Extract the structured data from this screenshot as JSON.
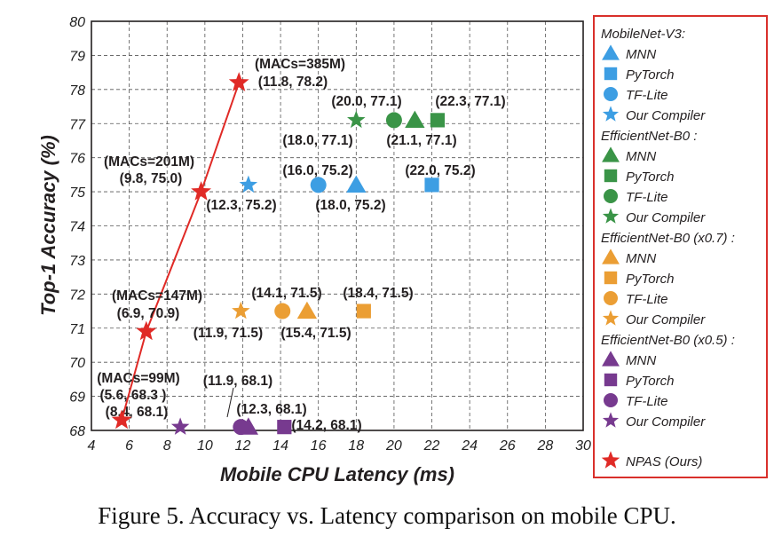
{
  "caption": "Figure 5. Accuracy vs. Latency comparison on mobile CPU.",
  "chart_data": {
    "type": "scatter",
    "title": "",
    "xlabel": "Mobile CPU Latency (ms)",
    "ylabel": "Top-1 Accuracy (%)",
    "xlim": [
      4,
      30
    ],
    "ylim": [
      68,
      80
    ],
    "xticks": [
      4,
      6,
      8,
      10,
      12,
      14,
      16,
      18,
      20,
      22,
      24,
      26,
      28,
      30
    ],
    "yticks": [
      68,
      69,
      70,
      71,
      72,
      73,
      74,
      75,
      76,
      77,
      78,
      79,
      80
    ],
    "grid": true,
    "legend_placement": "right-outside",
    "groups": [
      {
        "name": "MobileNet-V3:",
        "color": "#3d9ee3",
        "series": [
          {
            "name": "MNN",
            "shape": "triangle",
            "points": [
              {
                "x": 18.0,
                "y": 75.2,
                "label": "(18.0, 75.2)"
              }
            ]
          },
          {
            "name": "PyTorch",
            "shape": "square",
            "points": [
              {
                "x": 22.0,
                "y": 75.2,
                "label": "(22.0, 75.2)"
              }
            ]
          },
          {
            "name": "TF-Lite",
            "shape": "circle",
            "points": [
              {
                "x": 16.0,
                "y": 75.2,
                "label": "(16.0, 75.2)"
              }
            ]
          },
          {
            "name": "Our Compiler",
            "shape": "star",
            "points": [
              {
                "x": 12.3,
                "y": 75.2,
                "label": "(12.3, 75.2)"
              }
            ]
          }
        ]
      },
      {
        "name": "EfficientNet-B0 :",
        "color": "#3a9447",
        "series": [
          {
            "name": "MNN",
            "shape": "triangle",
            "points": [
              {
                "x": 21.1,
                "y": 77.1,
                "label": "(21.1, 77.1)"
              }
            ]
          },
          {
            "name": "PyTorch",
            "shape": "square",
            "points": [
              {
                "x": 22.3,
                "y": 77.1,
                "label": "(22.3, 77.1)"
              }
            ]
          },
          {
            "name": "TF-Lite",
            "shape": "circle",
            "points": [
              {
                "x": 20.0,
                "y": 77.1,
                "label": "(20.0, 77.1)"
              }
            ]
          },
          {
            "name": "Our Compiler",
            "shape": "star",
            "points": [
              {
                "x": 18.0,
                "y": 77.1,
                "label": "(18.0, 77.1)"
              }
            ]
          }
        ]
      },
      {
        "name": "EfficientNet-B0 (x0.7) :",
        "color": "#eb9e34",
        "series": [
          {
            "name": "MNN",
            "shape": "triangle",
            "points": [
              {
                "x": 15.4,
                "y": 71.5,
                "label": "(15.4, 71.5)"
              }
            ]
          },
          {
            "name": "PyTorch",
            "shape": "square",
            "points": [
              {
                "x": 18.4,
                "y": 71.5,
                "label": "(18.4, 71.5)"
              }
            ]
          },
          {
            "name": "TF-Lite",
            "shape": "circle",
            "points": [
              {
                "x": 14.1,
                "y": 71.5,
                "label": "(14.1, 71.5)"
              }
            ]
          },
          {
            "name": "Our Compiler",
            "shape": "star",
            "points": [
              {
                "x": 11.9,
                "y": 71.5,
                "label": "(11.9, 71.5)"
              }
            ]
          }
        ]
      },
      {
        "name": "EfficientNet-B0 (x0.5) :",
        "color": "#773a8f",
        "series": [
          {
            "name": "MNN",
            "shape": "triangle",
            "points": [
              {
                "x": 12.3,
                "y": 68.1,
                "label": "(12.3, 68.1)"
              }
            ]
          },
          {
            "name": "PyTorch",
            "shape": "square",
            "points": [
              {
                "x": 14.2,
                "y": 68.1,
                "label": "(14.2, 68.1)"
              }
            ]
          },
          {
            "name": "TF-Lite",
            "shape": "circle",
            "points": [
              {
                "x": 11.9,
                "y": 68.1,
                "label": "(11.9, 68.1)"
              }
            ]
          },
          {
            "name": "Our Compiler",
            "shape": "star",
            "points": [
              {
                "x": 8.4,
                "y": 68.1,
                "label": "(8.4, 68.1)"
              }
            ]
          }
        ]
      }
    ],
    "npas": {
      "name": "NPAS (Ours)",
      "shape": "star",
      "color": "#e02a26",
      "points": [
        {
          "x": 5.6,
          "y": 68.3,
          "label": "(5.6, 68.3 )",
          "macs": "(MACs=99M)"
        },
        {
          "x": 6.9,
          "y": 70.9,
          "label": "(6.9, 70.9)",
          "macs": "(MACs=147M)"
        },
        {
          "x": 9.8,
          "y": 75.0,
          "label": "(9.8, 75.0)",
          "macs": "(MACs=201M)"
        },
        {
          "x": 11.8,
          "y": 78.2,
          "label": "(11.8, 78.2)",
          "macs": "(MACs=385M)"
        }
      ]
    }
  }
}
